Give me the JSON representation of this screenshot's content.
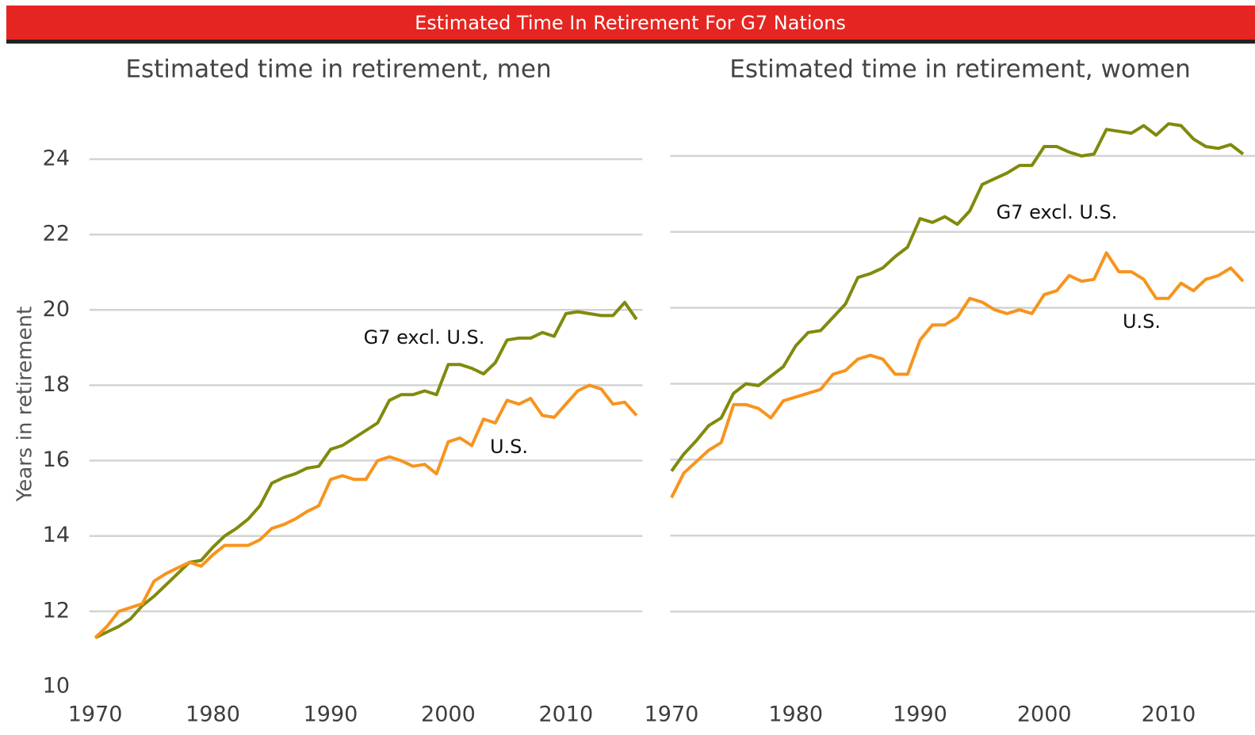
{
  "banner": {
    "title": "Estimated Time In Retirement For G7 Nations"
  },
  "chart_data": [
    {
      "type": "line",
      "title": "Estimated time in retirement, men",
      "y_label": "Years in retirement",
      "x": [
        1970,
        1971,
        1972,
        1973,
        1974,
        1975,
        1976,
        1977,
        1978,
        1979,
        1980,
        1981,
        1982,
        1983,
        1984,
        1985,
        1986,
        1987,
        1988,
        1989,
        1990,
        1991,
        1992,
        1993,
        1994,
        1995,
        1996,
        1997,
        1998,
        1999,
        2000,
        2001,
        2002,
        2003,
        2004,
        2005,
        2006,
        2007,
        2008,
        2009,
        2010,
        2011,
        2012,
        2013,
        2014,
        2015,
        2016
      ],
      "series": [
        {
          "name": "G7 excl. U.S.",
          "color": "#808a0c",
          "values": [
            11.3,
            11.45,
            11.6,
            11.8,
            12.15,
            12.4,
            12.7,
            13.0,
            13.3,
            13.35,
            13.7,
            14.0,
            14.2,
            14.45,
            14.8,
            15.4,
            15.55,
            15.65,
            15.8,
            15.85,
            16.3,
            16.4,
            16.6,
            16.8,
            17.0,
            17.6,
            17.75,
            17.75,
            17.85,
            17.75,
            18.55,
            18.55,
            18.45,
            18.3,
            18.6,
            19.2,
            19.25,
            19.25,
            19.4,
            19.3,
            19.9,
            19.95,
            19.9,
            19.85,
            19.85,
            20.2,
            19.75
          ]
        },
        {
          "name": "U.S.",
          "color": "#f7941d",
          "values": [
            11.3,
            11.6,
            12.0,
            12.1,
            12.2,
            12.8,
            13.0,
            13.15,
            13.3,
            13.2,
            13.5,
            13.75,
            13.75,
            13.75,
            13.9,
            14.2,
            14.3,
            14.45,
            14.65,
            14.8,
            15.5,
            15.6,
            15.5,
            15.5,
            16.0,
            16.1,
            16.0,
            15.85,
            15.9,
            15.65,
            16.5,
            16.6,
            16.4,
            17.1,
            17.0,
            17.6,
            17.5,
            17.65,
            17.2,
            17.15,
            17.5,
            17.85,
            18.0,
            17.9,
            17.5,
            17.55,
            17.2
          ]
        }
      ],
      "xlim": [
        1969.5,
        2016.5
      ],
      "xticks": [
        1970,
        1980,
        1990,
        2000,
        2010
      ],
      "ylim": [
        10,
        25
      ],
      "yticks": [
        10,
        12,
        14,
        16,
        18,
        20,
        22,
        24
      ],
      "ytick_labels": true,
      "grid": true
    },
    {
      "type": "line",
      "title": "Estimated time in retirement, women",
      "x": [
        1970,
        1971,
        1972,
        1973,
        1974,
        1975,
        1976,
        1977,
        1978,
        1979,
        1980,
        1981,
        1982,
        1983,
        1984,
        1985,
        1986,
        1987,
        1988,
        1989,
        1990,
        1991,
        1992,
        1993,
        1994,
        1995,
        1996,
        1997,
        1998,
        1999,
        2000,
        2001,
        2002,
        2003,
        2004,
        2005,
        2006,
        2007,
        2008,
        2009,
        2010,
        2011,
        2012,
        2013,
        2014,
        2015,
        2016
      ],
      "series": [
        {
          "name": "G7 excl. U.S.",
          "color": "#808a0c",
          "values": [
            15.7,
            16.15,
            16.5,
            16.9,
            17.1,
            17.75,
            18.0,
            17.95,
            18.2,
            18.45,
            19.0,
            19.35,
            19.4,
            19.75,
            20.1,
            20.8,
            20.9,
            21.05,
            21.35,
            21.6,
            22.35,
            22.25,
            22.4,
            22.2,
            22.55,
            23.25,
            23.4,
            23.55,
            23.75,
            23.75,
            24.25,
            24.25,
            24.1,
            24.0,
            24.05,
            24.7,
            24.65,
            24.6,
            24.8,
            24.55,
            24.85,
            24.8,
            24.45,
            24.25,
            24.2,
            24.3,
            24.05
          ]
        },
        {
          "name": "U.S.",
          "color": "#f7941d",
          "values": [
            15.0,
            15.65,
            15.95,
            16.25,
            16.45,
            17.45,
            17.45,
            17.35,
            17.1,
            17.55,
            17.65,
            17.75,
            17.85,
            18.25,
            18.35,
            18.65,
            18.75,
            18.65,
            18.25,
            18.25,
            19.15,
            19.55,
            19.55,
            19.75,
            20.25,
            20.15,
            19.95,
            19.85,
            19.95,
            19.85,
            20.35,
            20.45,
            20.85,
            20.7,
            20.75,
            21.45,
            20.95,
            20.95,
            20.75,
            20.25,
            20.25,
            20.65,
            20.45,
            20.75,
            20.85,
            21.05,
            20.7
          ]
        }
      ],
      "xlim": [
        1969.9,
        2018
      ],
      "xticks": [
        1970,
        1980,
        1990,
        2000,
        2010
      ],
      "ylim": [
        10,
        25
      ],
      "yticks": [
        10,
        12,
        14,
        16,
        18,
        20,
        22,
        24
      ],
      "ytick_labels": false,
      "grid": true
    }
  ]
}
